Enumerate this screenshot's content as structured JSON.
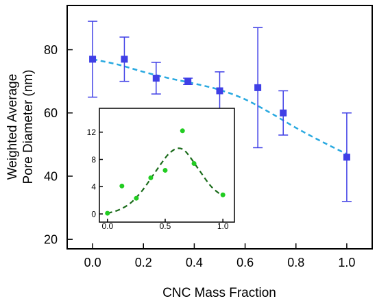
{
  "chart_data": [
    {
      "type": "scatter",
      "role": "main",
      "xlabel": "CNC Mass Fraction",
      "ylabel": [
        "Weighted Average",
        "Pore Diameter (nm)"
      ],
      "xlim": [
        -0.1,
        1.1
      ],
      "ylim": [
        17,
        94
      ],
      "xticks": [
        0.0,
        0.2,
        0.4,
        0.6,
        0.8,
        1.0
      ],
      "xtick_labels": [
        "0.0",
        "0.2",
        "0.4",
        "0.6",
        "0.8",
        "1.0"
      ],
      "yticks": [
        20,
        40,
        60,
        80
      ],
      "ytick_labels": [
        "20",
        "40",
        "60",
        "80"
      ],
      "grid": false,
      "marker_color": "#3f3fe6",
      "fit_color": "#29a9e0",
      "series": [
        {
          "type": "scatter",
          "x": [
            0.0,
            0.125,
            0.25,
            0.375,
            0.5,
            0.65,
            0.75,
            1.0
          ],
          "y": [
            77,
            77,
            71,
            70,
            67,
            68,
            60,
            46
          ],
          "yerr": [
            12,
            7,
            5,
            1,
            6,
            19,
            7,
            14
          ]
        },
        {
          "type": "line",
          "style": "dashed",
          "x": [
            0.0,
            0.1,
            0.2,
            0.3,
            0.4,
            0.5,
            0.6,
            0.7,
            0.8,
            0.9,
            1.0
          ],
          "y": [
            77,
            75.3,
            73,
            71,
            69.3,
            67.3,
            64.3,
            60,
            55.3,
            51,
            47
          ]
        }
      ]
    },
    {
      "type": "scatter",
      "role": "inset",
      "xlim": [
        -0.07,
        1.1
      ],
      "ylim": [
        -1.2,
        15.5
      ],
      "xticks": [
        0.0,
        0.5,
        1.0
      ],
      "xtick_labels": [
        "0.0",
        "0.5",
        "1.0"
      ],
      "yticks": [
        0,
        4,
        8,
        12
      ],
      "ytick_labels": [
        "0",
        "4",
        "8",
        "12"
      ],
      "grid": false,
      "marker_color": "#22cc22",
      "fit_color": "#1a6b1a",
      "series": [
        {
          "type": "scatter",
          "x": [
            0.0,
            0.125,
            0.25,
            0.375,
            0.5,
            0.65,
            0.75,
            1.0
          ],
          "y": [
            0.1,
            4.1,
            2.3,
            5.3,
            6.4,
            12.2,
            7.4,
            2.8
          ]
        },
        {
          "type": "line",
          "style": "dashed",
          "x": [
            0.0,
            0.1,
            0.2,
            0.3,
            0.4,
            0.5,
            0.55,
            0.6,
            0.65,
            0.7,
            0.8,
            0.9,
            1.0
          ],
          "y": [
            0.1,
            0.6,
            1.6,
            3.4,
            5.8,
            8.2,
            9.1,
            9.6,
            9.5,
            8.7,
            6.3,
            4.0,
            2.6
          ]
        }
      ]
    }
  ]
}
